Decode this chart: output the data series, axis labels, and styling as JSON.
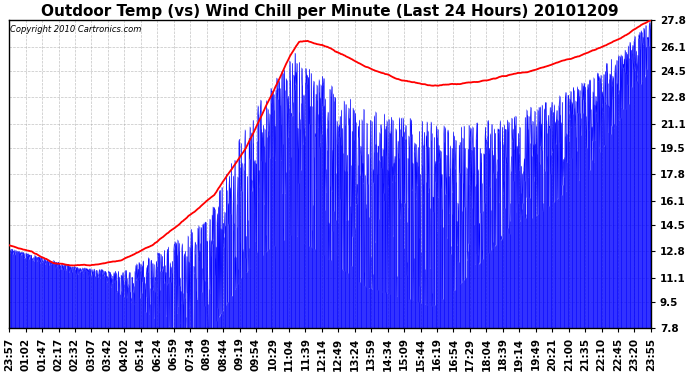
{
  "title": "Outdoor Temp (vs) Wind Chill per Minute (Last 24 Hours) 20101209",
  "copyright_text": "Copyright 2010 Cartronics.com",
  "yticks": [
    7.8,
    9.5,
    11.1,
    12.8,
    14.5,
    16.1,
    17.8,
    19.5,
    21.1,
    22.8,
    24.5,
    26.1,
    27.8
  ],
  "ymin": 7.8,
  "ymax": 27.8,
  "xtick_labels": [
    "23:57",
    "01:02",
    "01:47",
    "02:17",
    "02:32",
    "03:07",
    "03:42",
    "04:02",
    "05:14",
    "06:24",
    "06:59",
    "07:34",
    "08:09",
    "08:44",
    "09:19",
    "09:54",
    "10:29",
    "11:04",
    "11:39",
    "12:14",
    "12:49",
    "13:24",
    "13:59",
    "14:34",
    "15:09",
    "15:44",
    "16:19",
    "16:54",
    "17:29",
    "18:04",
    "18:39",
    "19:14",
    "19:49",
    "20:21",
    "21:00",
    "21:35",
    "22:10",
    "22:45",
    "23:20",
    "23:55"
  ],
  "background_color": "#ffffff",
  "plot_bg_color": "#ffffff",
  "grid_color": "#aaaaaa",
  "blue_color": "#0000ff",
  "red_color": "#ff0000",
  "title_fontsize": 11,
  "axis_fontsize": 7.5,
  "n_points": 1440
}
